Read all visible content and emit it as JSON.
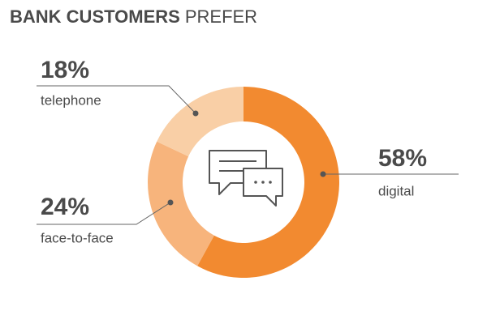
{
  "chart_data": {
    "type": "donut",
    "title": [
      "BANK CUSTOMERS",
      "PREFER"
    ],
    "categories": [
      "digital",
      "face-to-face",
      "telephone"
    ],
    "values": [
      58,
      24,
      18
    ],
    "value_labels": [
      "58%",
      "24%",
      "18%"
    ],
    "colors": [
      "#f28a30",
      "#f7b47c",
      "#f9cfa6"
    ]
  }
}
